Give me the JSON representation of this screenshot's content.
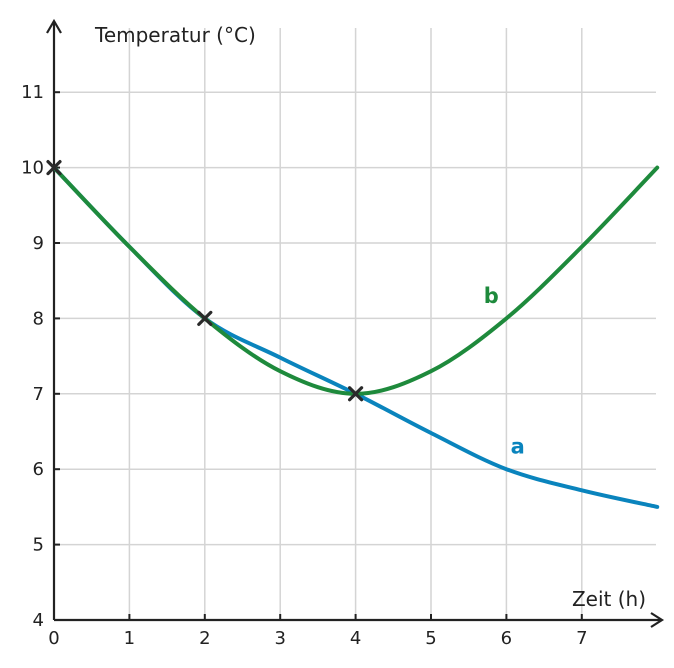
{
  "chart_data": {
    "type": "line",
    "xlabel": "Zeit (h)",
    "ylabel": "Temperatur (°C)",
    "xlim": [
      0,
      8
    ],
    "ylim": [
      4,
      12
    ],
    "x_ticks": [
      0,
      1,
      2,
      3,
      4,
      5,
      6,
      7
    ],
    "y_ticks": [
      4,
      5,
      6,
      7,
      8,
      9,
      10,
      11
    ],
    "grid": true,
    "series": [
      {
        "name": "a",
        "color": "#0a84bd",
        "x": [
          0,
          1,
          2,
          3,
          4,
          5,
          6,
          7,
          8
        ],
        "y": [
          10,
          8.95,
          8,
          7.48,
          7,
          6.48,
          6,
          5.72,
          5.5
        ]
      },
      {
        "name": "b",
        "color": "#1e8a3c",
        "x": [
          0,
          1,
          2,
          3,
          4,
          5,
          6,
          7,
          8
        ],
        "y": [
          10,
          8.95,
          8,
          7.3,
          7,
          7.3,
          8,
          8.95,
          10
        ]
      }
    ],
    "markers": [
      {
        "x": 0,
        "y": 10
      },
      {
        "x": 2,
        "y": 8
      },
      {
        "x": 4,
        "y": 7
      }
    ],
    "series_labels": [
      {
        "text": "a",
        "x": 6.15,
        "y": 6.3,
        "color": "#0a84bd"
      },
      {
        "text": "b",
        "x": 5.8,
        "y": 8.3,
        "color": "#1e8a3c"
      }
    ]
  }
}
